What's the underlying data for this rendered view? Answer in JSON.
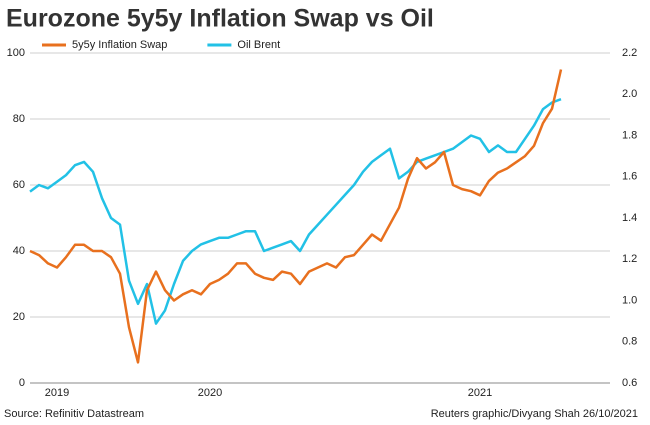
{
  "chart_data": {
    "type": "line",
    "title": "Eurozone 5y5y Inflation Swap vs Oil",
    "source": "Source: Refinitiv Datastream",
    "credit": "Reuters graphic/Divyang Shah 26/10/2021",
    "categories": [
      null,
      null,
      null,
      "2019",
      null,
      null,
      null,
      null,
      null,
      null,
      null,
      null,
      null,
      null,
      null,
      null,
      null,
      null,
      null,
      null,
      "2020",
      null,
      null,
      null,
      null,
      null,
      null,
      null,
      null,
      null,
      null,
      null,
      null,
      null,
      null,
      null,
      null,
      null,
      null,
      null,
      null,
      null,
      null,
      null,
      null,
      null,
      null,
      null,
      null,
      null,
      "2021",
      null,
      null,
      null,
      null,
      null,
      null,
      null,
      null,
      null
    ],
    "series": [
      {
        "name": "5y5y Inflation Swap",
        "color": "#e8701e",
        "axis": "y2",
        "values": [
          1.24,
          1.22,
          1.18,
          1.16,
          1.21,
          1.27,
          1.27,
          1.24,
          1.24,
          1.21,
          1.13,
          0.87,
          0.7,
          1.05,
          1.14,
          1.05,
          1.0,
          1.03,
          1.05,
          1.03,
          1.08,
          1.1,
          1.13,
          1.18,
          1.18,
          1.13,
          1.11,
          1.1,
          1.14,
          1.13,
          1.08,
          1.14,
          1.16,
          1.18,
          1.16,
          1.21,
          1.22,
          1.27,
          1.32,
          1.29,
          1.37,
          1.45,
          1.59,
          1.69,
          1.64,
          1.67,
          1.72,
          1.56,
          1.54,
          1.53,
          1.51,
          1.58,
          1.62,
          1.64,
          1.67,
          1.7,
          1.75,
          1.86,
          1.93,
          2.12
        ]
      },
      {
        "name": "Oil Brent",
        "color": "#22c1e6",
        "axis": "y",
        "values": [
          58,
          60,
          59,
          61,
          63,
          66,
          67,
          64,
          56,
          50,
          48,
          31,
          24,
          30,
          18,
          22,
          30,
          37,
          40,
          42,
          43,
          44,
          44,
          45,
          46,
          46,
          40,
          41,
          42,
          43,
          40,
          45,
          48,
          51,
          54,
          57,
          60,
          64,
          67,
          69,
          71,
          62,
          64,
          67,
          68,
          69,
          70,
          71,
          73,
          75,
          74,
          70,
          72,
          70,
          70,
          74,
          78,
          83,
          85,
          86
        ]
      }
    ],
    "ylim": [
      0,
      100
    ],
    "yticks": [
      0,
      20,
      40,
      60,
      80,
      100
    ],
    "y2lim": [
      0.6,
      2.2
    ],
    "y2ticks": [
      0.6,
      0.8,
      1.0,
      1.2,
      1.4,
      1.6,
      1.8,
      2.0,
      2.2
    ],
    "grid": true
  }
}
